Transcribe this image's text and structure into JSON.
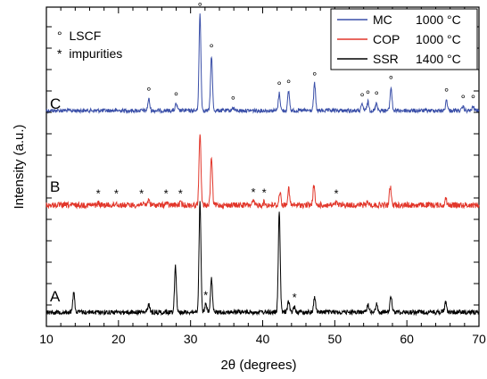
{
  "chart_data": {
    "type": "line",
    "xlabel": "2θ (degrees)",
    "ylabel": "Intensity (a.u.)",
    "xlim": [
      10,
      70
    ],
    "x_ticks": [
      10,
      20,
      30,
      40,
      50,
      60,
      70
    ],
    "y_ticks_labeled": false,
    "marker_key": [
      {
        "symbol": "°",
        "label": "LSCF"
      },
      {
        "symbol": "*",
        "label": "impurities"
      }
    ],
    "legend": {
      "placement": "top-right",
      "entries": [
        {
          "name": "MC",
          "temp": "1000 °C",
          "color": "#3a4fa8"
        },
        {
          "name": "COP",
          "temp": "1000 °C",
          "color": "#e2362a"
        },
        {
          "name": "SSR",
          "temp": "1400 °C",
          "color": "#000000"
        }
      ]
    },
    "series": [
      {
        "name": "MC",
        "sample_label": "C",
        "color": "#3a4fa8",
        "peaks": [
          {
            "x": 24.2,
            "h": 0.12
          },
          {
            "x": 28.0,
            "h": 0.07
          },
          {
            "x": 31.3,
            "h": 1.0
          },
          {
            "x": 32.9,
            "h": 0.57
          },
          {
            "x": 35.9,
            "h": 0.03
          },
          {
            "x": 42.3,
            "h": 0.18
          },
          {
            "x": 43.6,
            "h": 0.2
          },
          {
            "x": 47.2,
            "h": 0.28
          },
          {
            "x": 53.8,
            "h": 0.06
          },
          {
            "x": 54.6,
            "h": 0.09
          },
          {
            "x": 55.8,
            "h": 0.08
          },
          {
            "x": 57.8,
            "h": 0.24
          },
          {
            "x": 65.5,
            "h": 0.11
          },
          {
            "x": 67.8,
            "h": 0.04
          },
          {
            "x": 69.2,
            "h": 0.04
          }
        ],
        "markers": [
          {
            "x": 24.2,
            "symbol": "°"
          },
          {
            "x": 28.0,
            "symbol": "°"
          },
          {
            "x": 31.3,
            "symbol": "°"
          },
          {
            "x": 32.9,
            "symbol": "°"
          },
          {
            "x": 35.9,
            "symbol": "°"
          },
          {
            "x": 42.3,
            "symbol": "°"
          },
          {
            "x": 43.6,
            "symbol": "°"
          },
          {
            "x": 47.2,
            "symbol": "°"
          },
          {
            "x": 53.8,
            "symbol": "°"
          },
          {
            "x": 54.6,
            "symbol": "°"
          },
          {
            "x": 55.8,
            "symbol": "°"
          },
          {
            "x": 57.8,
            "symbol": "°"
          },
          {
            "x": 65.5,
            "symbol": "°"
          },
          {
            "x": 67.8,
            "symbol": "°"
          },
          {
            "x": 69.2,
            "symbol": "°"
          }
        ]
      },
      {
        "name": "COP",
        "sample_label": "B",
        "color": "#e2362a",
        "peaks": [
          {
            "x": 17.2,
            "h": 0.03
          },
          {
            "x": 19.7,
            "h": 0.03
          },
          {
            "x": 23.2,
            "h": 0.03
          },
          {
            "x": 24.2,
            "h": 0.08
          },
          {
            "x": 26.6,
            "h": 0.03
          },
          {
            "x": 28.6,
            "h": 0.03
          },
          {
            "x": 31.3,
            "h": 1.0
          },
          {
            "x": 32.9,
            "h": 0.65
          },
          {
            "x": 38.7,
            "h": 0.05
          },
          {
            "x": 40.2,
            "h": 0.04
          },
          {
            "x": 42.4,
            "h": 0.18
          },
          {
            "x": 43.6,
            "h": 0.22
          },
          {
            "x": 47.1,
            "h": 0.26
          },
          {
            "x": 50.2,
            "h": 0.03
          },
          {
            "x": 54.6,
            "h": 0.05
          },
          {
            "x": 57.7,
            "h": 0.25
          },
          {
            "x": 65.4,
            "h": 0.09
          }
        ],
        "markers": [
          {
            "x": 17.2,
            "symbol": "*"
          },
          {
            "x": 19.7,
            "symbol": "*"
          },
          {
            "x": 23.2,
            "symbol": "*"
          },
          {
            "x": 26.6,
            "symbol": "*"
          },
          {
            "x": 28.6,
            "symbol": "*"
          },
          {
            "x": 38.7,
            "symbol": "*"
          },
          {
            "x": 40.2,
            "symbol": "*"
          },
          {
            "x": 50.2,
            "symbol": "*"
          }
        ]
      },
      {
        "name": "SSR",
        "sample_label": "A",
        "color": "#000000",
        "peaks": [
          {
            "x": 13.8,
            "h": 0.18
          },
          {
            "x": 24.2,
            "h": 0.07
          },
          {
            "x": 27.9,
            "h": 0.42
          },
          {
            "x": 31.3,
            "h": 1.0
          },
          {
            "x": 32.1,
            "h": 0.07
          },
          {
            "x": 32.9,
            "h": 0.3
          },
          {
            "x": 42.3,
            "h": 0.91
          },
          {
            "x": 43.6,
            "h": 0.1
          },
          {
            "x": 44.4,
            "h": 0.05
          },
          {
            "x": 47.2,
            "h": 0.14
          },
          {
            "x": 54.6,
            "h": 0.08
          },
          {
            "x": 55.8,
            "h": 0.07
          },
          {
            "x": 57.8,
            "h": 0.15
          },
          {
            "x": 65.4,
            "h": 0.1
          }
        ],
        "markers": [
          {
            "x": 32.1,
            "symbol": "*"
          },
          {
            "x": 44.4,
            "symbol": "*"
          }
        ]
      }
    ]
  }
}
